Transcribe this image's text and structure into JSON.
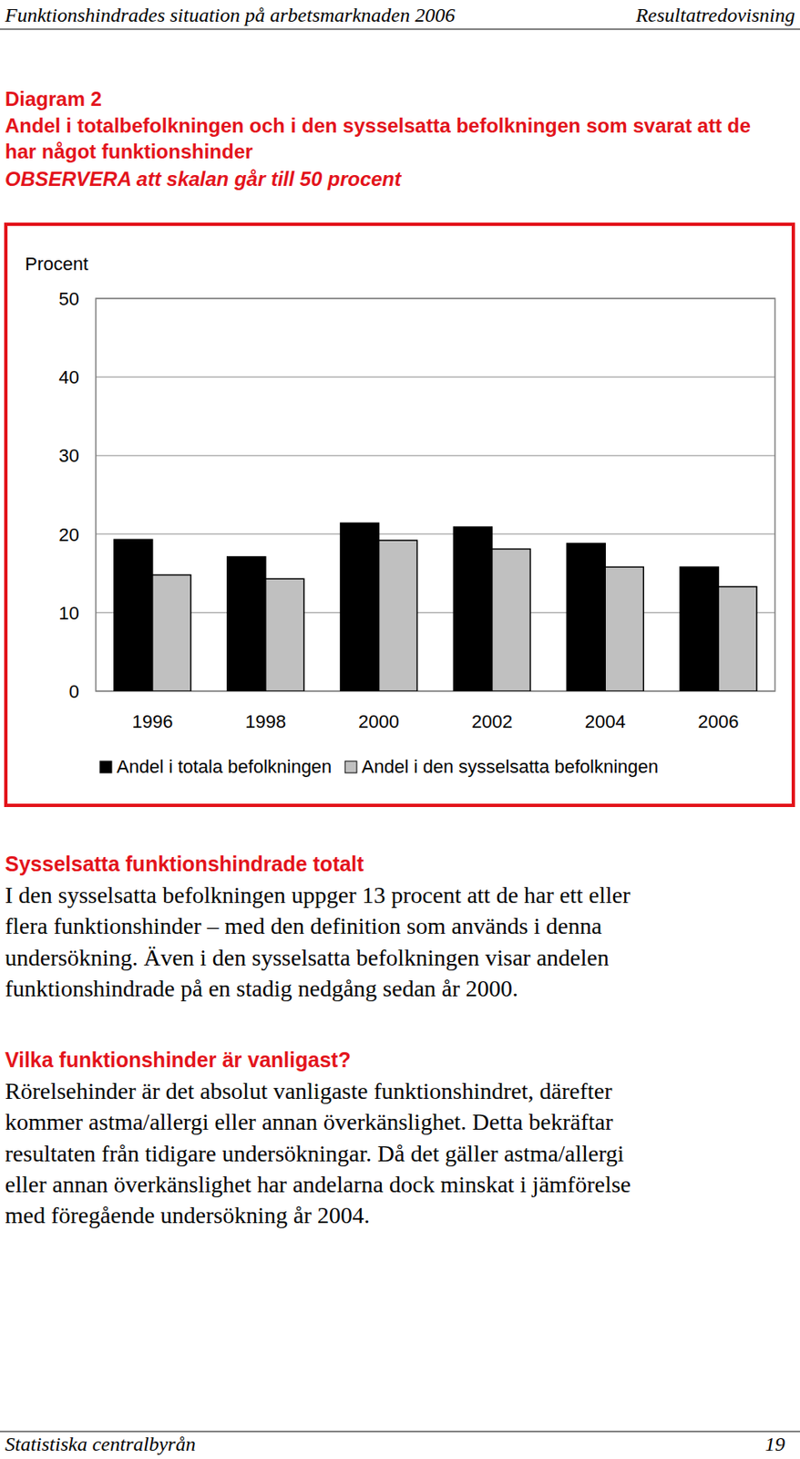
{
  "header": {
    "left": "Funktionshindrades situation på arbetsmarknaden 2006",
    "right": "Resultatredovisning"
  },
  "chart_data": {
    "type": "bar",
    "label": "Diagram 2",
    "title": "Andel i totalbefolkningen och i den sysselsatta befolkningen som svarat att de har något funktionshinder",
    "subtitle": "OBSERVERA att skalan går till 50 procent",
    "y_label": "Procent",
    "categories": [
      "1996",
      "1998",
      "2000",
      "2002",
      "2004",
      "2006"
    ],
    "series": [
      {
        "name": "Andel i totala befolkningen",
        "color": "#000000",
        "values": [
          19.3,
          17.1,
          21.4,
          20.9,
          18.8,
          15.8
        ]
      },
      {
        "name": "Andel i den sysselsatta befolkningen",
        "color": "#c0c0c0",
        "values": [
          14.8,
          14.3,
          19.2,
          18.1,
          15.8,
          13.3
        ]
      }
    ],
    "ylim": [
      0,
      50
    ],
    "yticks": [
      0,
      10,
      20,
      30,
      40,
      50
    ],
    "grid": true,
    "legend": "bottom"
  },
  "sections": [
    {
      "heading": "Sysselsatta funktionshindrade totalt",
      "lines": [
        "I den sysselsatta befolkningen uppger 13 procent att de har ett eller",
        "flera funktionshinder – med den definition som används i denna",
        "undersökning. Även i den sysselsatta befolkningen visar andelen",
        "funktionshindrade på en stadig nedgång sedan år 2000."
      ]
    },
    {
      "heading": "Vilka funktionshinder är vanligast?",
      "lines": [
        "Rörelsehinder är det absolut vanligaste funktionshindret, därefter",
        "kommer astma/allergi eller annan överkänslighet. Detta bekräftar",
        "resultaten från tidigare undersökningar. Då det gäller astma/allergi",
        "eller annan överkänslighet har andelarna dock minskat i jämförelse",
        "med föregående undersökning år 2004."
      ]
    }
  ],
  "footer": {
    "left": "Statistiska centralbyrån",
    "right": "19"
  }
}
